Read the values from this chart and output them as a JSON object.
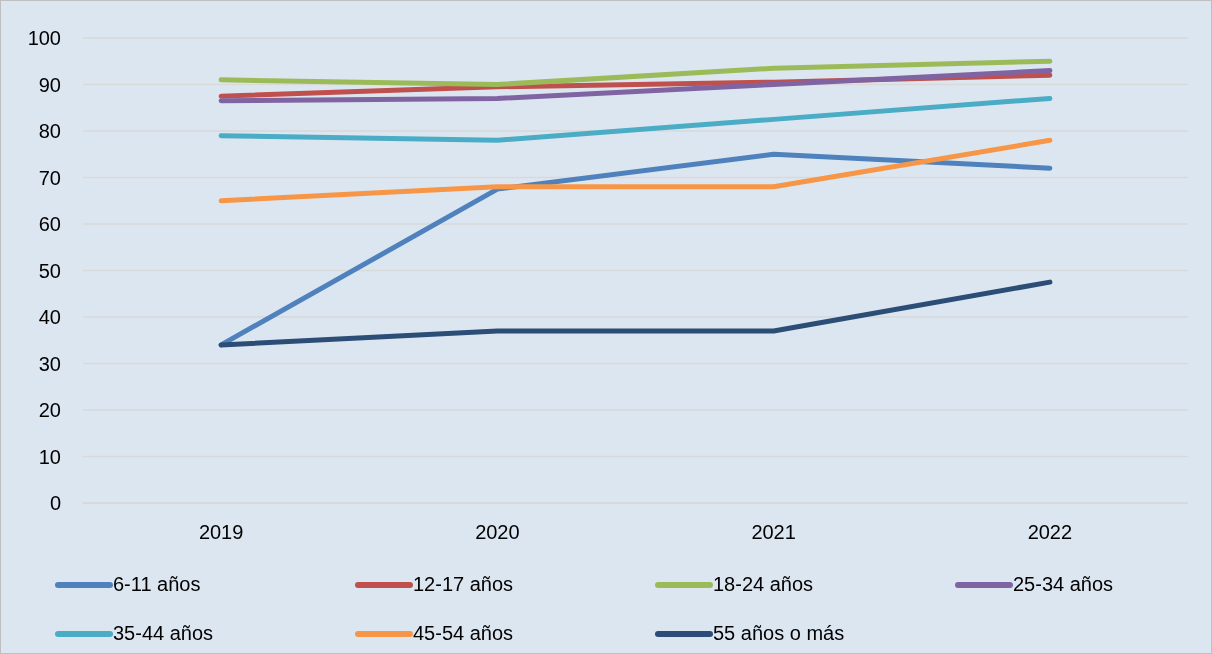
{
  "chart_data": {
    "type": "line",
    "categories": [
      "2019",
      "2020",
      "2021",
      "2022"
    ],
    "series": [
      {
        "name": "6-11 años",
        "color": "#4f81bd",
        "values": [
          34,
          67.5,
          75,
          72
        ]
      },
      {
        "name": "12-17 años",
        "color": "#c0504d",
        "values": [
          87.5,
          89.5,
          90.5,
          92
        ]
      },
      {
        "name": "18-24 años",
        "color": "#9bbb59",
        "values": [
          91,
          90,
          93.5,
          95
        ]
      },
      {
        "name": "25-34 años",
        "color": "#8064a2",
        "values": [
          86.5,
          87,
          90,
          93
        ]
      },
      {
        "name": "35-44 años",
        "color": "#4bacc6",
        "values": [
          79,
          78,
          82.5,
          87
        ]
      },
      {
        "name": "45-54 años",
        "color": "#f79646",
        "values": [
          65,
          68,
          68,
          78
        ]
      },
      {
        "name": "55 años o más",
        "color": "#2c4d75",
        "values": [
          34,
          37,
          37,
          47.5
        ]
      }
    ],
    "ylim": [
      0,
      100
    ],
    "yticks": [
      0,
      10,
      20,
      30,
      40,
      50,
      60,
      70,
      80,
      90,
      100
    ],
    "grid": "y",
    "legend": "bottom",
    "line_style": "solid"
  }
}
